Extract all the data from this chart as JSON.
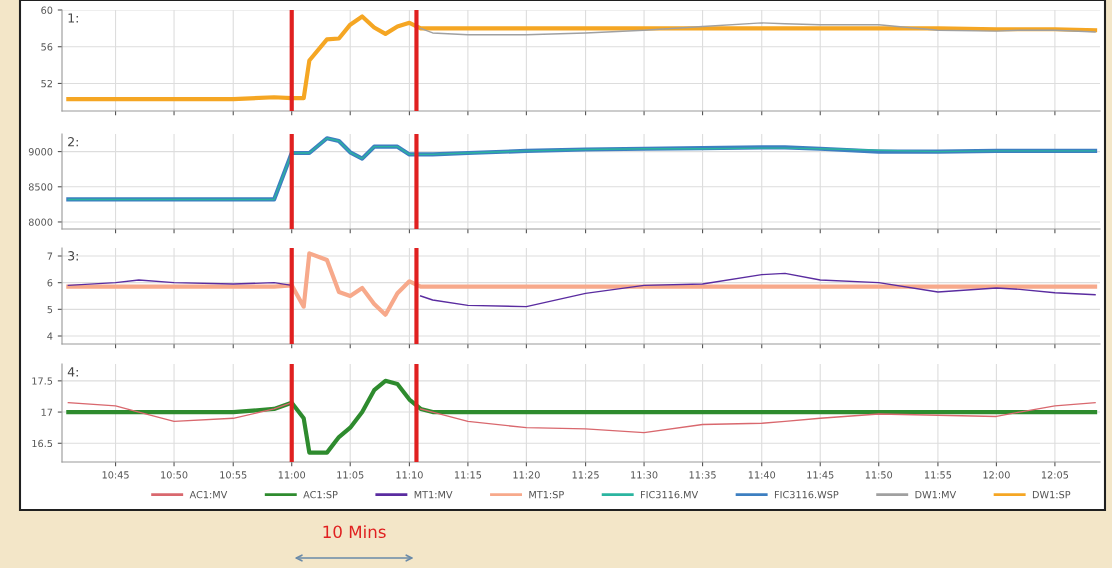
{
  "chart_data": [
    {
      "type": "line",
      "annotations": [
        "1:"
      ],
      "x": [
        10.683,
        10.75,
        10.783,
        10.833,
        10.917,
        10.975,
        11.0,
        11.017,
        11.025,
        11.05,
        11.067,
        11.083,
        11.1,
        11.117,
        11.133,
        11.15,
        11.167,
        11.183,
        11.2,
        11.25,
        11.333,
        11.417,
        11.5,
        11.583,
        11.667,
        11.7,
        11.75,
        11.833,
        11.917,
        12.0,
        12.033,
        12.083,
        12.14
      ],
      "series": [
        {
          "name": "DW1:MV",
          "color": "#a0a0a0",
          "values": [
            null,
            null,
            null,
            null,
            null,
            null,
            null,
            null,
            null,
            null,
            null,
            null,
            null,
            null,
            null,
            null,
            null,
            58.0,
            57.5,
            57.3,
            57.3,
            57.5,
            57.8,
            58.2,
            58.6,
            58.5,
            58.4,
            58.4,
            57.8,
            57.7,
            57.8,
            57.8,
            57.6
          ]
        },
        {
          "name": "DW1:SP",
          "color": "#f5a623",
          "values": [
            50.3,
            50.3,
            50.3,
            50.3,
            50.3,
            50.5,
            50.4,
            50.4,
            54.5,
            56.8,
            56.9,
            58.4,
            59.3,
            58.1,
            57.4,
            58.2,
            58.6,
            58.0,
            58.0,
            58.0,
            58.0,
            58.0,
            58.0,
            58.0,
            58.0,
            58.0,
            58.0,
            58.0,
            58.0,
            57.9,
            57.9,
            57.9,
            57.8
          ]
        }
      ],
      "xlim": [
        10.674,
        12.147
      ],
      "ylim": [
        49,
        60
      ],
      "yticks": [
        52,
        56,
        60
      ],
      "xticks": [
        {
          "value": 10.75,
          "label": null
        },
        {
          "value": 10.833,
          "label": null
        },
        {
          "value": 10.917,
          "label": null
        },
        {
          "value": 11.0,
          "label": null
        },
        {
          "value": 11.083,
          "label": null
        },
        {
          "value": 11.167,
          "label": null
        },
        {
          "value": 11.25,
          "label": null
        },
        {
          "value": 11.333,
          "label": null
        },
        {
          "value": 11.417,
          "label": null
        },
        {
          "value": 11.5,
          "label": null
        },
        {
          "value": 11.583,
          "label": null
        },
        {
          "value": 11.667,
          "label": null
        },
        {
          "value": 11.75,
          "label": null
        },
        {
          "value": 11.833,
          "label": null
        },
        {
          "value": 11.917,
          "label": null
        },
        {
          "value": 12.0,
          "label": null
        },
        {
          "value": 12.083,
          "label": null
        }
      ],
      "tick_labels": "y",
      "grid": true,
      "legend": "bottom",
      "ref_lines": [
        {
          "axis": "x",
          "value": 11.0,
          "color": "#e02020"
        },
        {
          "axis": "x",
          "value": 11.177,
          "color": "#e02020"
        }
      ]
    },
    {
      "type": "line",
      "annotations": [
        "2:"
      ],
      "x": [
        10.683,
        10.75,
        10.783,
        10.833,
        10.917,
        10.975,
        11.0,
        11.017,
        11.025,
        11.05,
        11.067,
        11.083,
        11.1,
        11.117,
        11.133,
        11.15,
        11.167,
        11.183,
        11.2,
        11.25,
        11.333,
        11.417,
        11.5,
        11.583,
        11.667,
        11.7,
        11.75,
        11.833,
        11.917,
        12.0,
        12.033,
        12.083,
        12.14
      ],
      "series": [
        {
          "name": "FIC3116.MV",
          "color": "#2bb5a0",
          "values": [
            8320,
            8320,
            8320,
            8320,
            8320,
            8320,
            8980,
            8980,
            8980,
            9190,
            9150,
            8990,
            8900,
            9070,
            9070,
            9070,
            8960,
            8960,
            8960,
            8980,
            9010,
            9030,
            9040,
            9040,
            9050,
            9050,
            9040,
            9020,
            9000,
            9010,
            9010,
            9010,
            9010
          ]
        },
        {
          "name": "FIC3116.WSP",
          "color": "#3d7fc1",
          "values": [
            8320,
            8320,
            8320,
            8320,
            8320,
            8320,
            8980,
            8980,
            8980,
            9190,
            9150,
            8990,
            8900,
            9070,
            9070,
            9070,
            8960,
            8960,
            8960,
            8980,
            9010,
            9030,
            9040,
            9050,
            9060,
            9060,
            9040,
            9000,
            9000,
            9010,
            9010,
            9010,
            9010
          ]
        }
      ],
      "xlim": [
        10.674,
        12.147
      ],
      "ylim": [
        7900,
        9250
      ],
      "yticks": [
        8000,
        8500,
        9000
      ],
      "xticks": [
        {
          "value": 10.75,
          "label": null
        },
        {
          "value": 10.833,
          "label": null
        },
        {
          "value": 10.917,
          "label": null
        },
        {
          "value": 11.0,
          "label": null
        },
        {
          "value": 11.083,
          "label": null
        },
        {
          "value": 11.167,
          "label": null
        },
        {
          "value": 11.25,
          "label": null
        },
        {
          "value": 11.333,
          "label": null
        },
        {
          "value": 11.417,
          "label": null
        },
        {
          "value": 11.5,
          "label": null
        },
        {
          "value": 11.583,
          "label": null
        },
        {
          "value": 11.667,
          "label": null
        },
        {
          "value": 11.75,
          "label": null
        },
        {
          "value": 11.833,
          "label": null
        },
        {
          "value": 11.917,
          "label": null
        },
        {
          "value": 12.0,
          "label": null
        },
        {
          "value": 12.083,
          "label": null
        }
      ],
      "tick_labels": "y",
      "grid": true,
      "legend": "bottom",
      "ref_lines": [
        {
          "axis": "x",
          "value": 11.0,
          "color": "#e02020"
        },
        {
          "axis": "x",
          "value": 11.177,
          "color": "#e02020"
        }
      ]
    },
    {
      "type": "line",
      "annotations": [
        "3:"
      ],
      "x": [
        10.683,
        10.75,
        10.783,
        10.833,
        10.917,
        10.975,
        11.0,
        11.017,
        11.025,
        11.05,
        11.067,
        11.083,
        11.1,
        11.117,
        11.133,
        11.15,
        11.167,
        11.183,
        11.2,
        11.25,
        11.333,
        11.417,
        11.5,
        11.583,
        11.667,
        11.7,
        11.75,
        11.833,
        11.917,
        12.0,
        12.033,
        12.083,
        12.14
      ],
      "series": [
        {
          "name": "MT1:MV",
          "color": "#5a2ca0",
          "values": [
            5.9,
            6.0,
            6.1,
            6.0,
            5.95,
            6.0,
            5.9,
            null,
            null,
            null,
            null,
            null,
            null,
            null,
            null,
            null,
            null,
            5.5,
            5.35,
            5.15,
            5.1,
            5.6,
            5.9,
            5.95,
            6.3,
            6.35,
            6.1,
            6.0,
            5.65,
            5.8,
            5.75,
            5.62,
            5.55
          ]
        },
        {
          "name": "MT1:SP",
          "color": "#f7a98b",
          "values": [
            5.85,
            5.85,
            5.85,
            5.85,
            5.85,
            5.85,
            5.9,
            5.1,
            7.1,
            6.85,
            5.65,
            5.5,
            5.8,
            5.2,
            4.8,
            5.6,
            6.05,
            5.85,
            5.85,
            5.85,
            5.85,
            5.85,
            5.85,
            5.85,
            5.85,
            5.85,
            5.85,
            5.85,
            5.85,
            5.85,
            5.85,
            5.85,
            5.85
          ]
        }
      ],
      "xlim": [
        10.674,
        12.147
      ],
      "ylim": [
        3.7,
        7.3
      ],
      "yticks": [
        4,
        5,
        6,
        7
      ],
      "xticks": [
        {
          "value": 10.75,
          "label": null
        },
        {
          "value": 10.833,
          "label": null
        },
        {
          "value": 10.917,
          "label": null
        },
        {
          "value": 11.0,
          "label": null
        },
        {
          "value": 11.083,
          "label": null
        },
        {
          "value": 11.167,
          "label": null
        },
        {
          "value": 11.25,
          "label": null
        },
        {
          "value": 11.333,
          "label": null
        },
        {
          "value": 11.417,
          "label": null
        },
        {
          "value": 11.5,
          "label": null
        },
        {
          "value": 11.583,
          "label": null
        },
        {
          "value": 11.667,
          "label": null
        },
        {
          "value": 11.75,
          "label": null
        },
        {
          "value": 11.833,
          "label": null
        },
        {
          "value": 11.917,
          "label": null
        },
        {
          "value": 12.0,
          "label": null
        },
        {
          "value": 12.083,
          "label": null
        }
      ],
      "tick_labels": "y",
      "grid": true,
      "legend": "bottom",
      "ref_lines": [
        {
          "axis": "x",
          "value": 11.0,
          "color": "#e02020"
        },
        {
          "axis": "x",
          "value": 11.177,
          "color": "#e02020"
        }
      ]
    },
    {
      "type": "line",
      "annotations": [
        "4:",
        "10 Mins"
      ],
      "x": [
        10.683,
        10.75,
        10.783,
        10.833,
        10.917,
        10.975,
        11.0,
        11.017,
        11.025,
        11.05,
        11.067,
        11.083,
        11.1,
        11.117,
        11.133,
        11.15,
        11.167,
        11.183,
        11.2,
        11.25,
        11.333,
        11.417,
        11.5,
        11.583,
        11.667,
        11.7,
        11.75,
        11.833,
        11.917,
        12.0,
        12.033,
        12.083,
        12.14
      ],
      "series": [
        {
          "name": "AC1:MV",
          "color": "#d9686e",
          "values": [
            17.15,
            17.1,
            17.0,
            16.85,
            16.9,
            17.05,
            17.15,
            null,
            null,
            null,
            null,
            null,
            null,
            null,
            null,
            null,
            null,
            17.05,
            17.0,
            16.85,
            16.75,
            16.73,
            16.67,
            16.8,
            16.82,
            16.85,
            16.9,
            16.97,
            16.95,
            16.93,
            17.0,
            17.1,
            17.15
          ]
        },
        {
          "name": "AC1:SP",
          "color": "#2e8b2e",
          "values": [
            17.0,
            17.0,
            17.0,
            17.0,
            17.0,
            17.05,
            17.15,
            16.9,
            16.35,
            16.35,
            16.6,
            16.75,
            17.0,
            17.35,
            17.5,
            17.45,
            17.2,
            17.05,
            17.0,
            17.0,
            17.0,
            17.0,
            17.0,
            17.0,
            17.0,
            17.0,
            17.0,
            17.0,
            17.0,
            17.0,
            17.0,
            17.0,
            17.0
          ]
        }
      ],
      "xlim": [
        10.674,
        12.147
      ],
      "ylim": [
        16.2,
        17.77
      ],
      "yticks": [
        16.5,
        17,
        17.5
      ],
      "xticks": [
        {
          "value": 10.75,
          "label": "10:45"
        },
        {
          "value": 10.833,
          "label": "10:50"
        },
        {
          "value": 10.917,
          "label": "10:55"
        },
        {
          "value": 11.0,
          "label": "11:00"
        },
        {
          "value": 11.083,
          "label": "11:05"
        },
        {
          "value": 11.167,
          "label": "11:10"
        },
        {
          "value": 11.25,
          "label": "11:15"
        },
        {
          "value": 11.333,
          "label": "11:20"
        },
        {
          "value": 11.417,
          "label": "11:25"
        },
        {
          "value": 11.5,
          "label": "11:30"
        },
        {
          "value": 11.583,
          "label": "11:35"
        },
        {
          "value": 11.667,
          "label": "11:40"
        },
        {
          "value": 11.75,
          "label": "11:45"
        },
        {
          "value": 11.833,
          "label": "11:50"
        },
        {
          "value": 11.917,
          "label": "11:55"
        },
        {
          "value": 12.0,
          "label": "12:00"
        },
        {
          "value": 12.083,
          "label": "12:05"
        }
      ],
      "grid": true,
      "legend": "bottom",
      "ref_lines": [
        {
          "axis": "x",
          "value": 11.0,
          "color": "#e02020"
        },
        {
          "axis": "x",
          "value": 11.177,
          "color": "#e02020"
        }
      ]
    }
  ]
}
